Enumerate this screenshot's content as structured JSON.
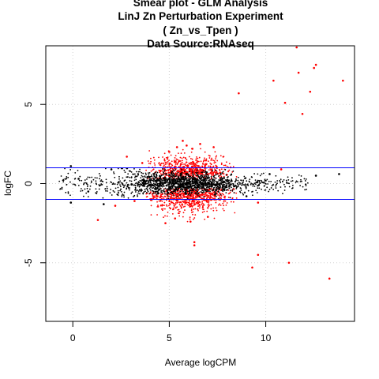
{
  "chart_data": {
    "type": "scatter",
    "title_lines": [
      "Smear plot - GLM Analysis",
      "LinJ Zn Perturbation Experiment",
      "( Zn_vs_Tpen )",
      "Data Source:RNAseq"
    ],
    "xlabel": "Average logCPM",
    "ylabel": "logFC",
    "xlim": [
      -1.4,
      14.6
    ],
    "ylim": [
      -8.7,
      8.7
    ],
    "xticks": [
      0,
      5,
      10
    ],
    "yticks": [
      -5,
      0,
      5
    ],
    "grid": true,
    "threshold_lines": [
      1,
      -1
    ],
    "colors": {
      "significant": "#ff0000",
      "nonsignificant": "#000000",
      "threshold": "#0000ff",
      "grid": "#d3d3d3"
    },
    "series": [
      {
        "name": "",
        "color": "#ff0000",
        "points": [
          [
            11.6,
            8.6
          ],
          [
            12.6,
            7.5
          ],
          [
            12.5,
            7.3
          ],
          [
            14.0,
            6.5
          ],
          [
            10.4,
            6.5
          ],
          [
            11.7,
            7.0
          ],
          [
            12.3,
            5.8
          ],
          [
            8.6,
            5.7
          ],
          [
            11.0,
            5.1
          ],
          [
            11.9,
            4.4
          ],
          [
            1.3,
            -2.3
          ],
          [
            6.3,
            -3.7
          ],
          [
            6.3,
            -3.9
          ],
          [
            9.6,
            -4.5
          ],
          [
            11.2,
            -5.0
          ],
          [
            9.3,
            -5.3
          ],
          [
            13.3,
            -6.0
          ],
          [
            5.4,
            2.3
          ],
          [
            5.9,
            2.4
          ],
          [
            6.6,
            2.5
          ],
          [
            7.3,
            2.3
          ],
          [
            5.0,
            2.0
          ],
          [
            5.7,
            2.7
          ],
          [
            6.2,
            2.2
          ],
          [
            2.8,
            1.7
          ],
          [
            3.6,
            1.3
          ],
          [
            4.8,
            -2.5
          ],
          [
            6.1,
            -2.4
          ],
          [
            7.0,
            -2.1
          ],
          [
            5.3,
            -2.2
          ],
          [
            2.2,
            -1.4
          ],
          [
            3.2,
            -1.1
          ],
          [
            10.8,
            0.9
          ],
          [
            9.6,
            -1.2
          ]
        ]
      },
      {
        "name": "",
        "color": "#000000",
        "points": [
          [
            -0.1,
            1.1
          ],
          [
            -0.1,
            -1.2
          ],
          [
            1.6,
            -1.3
          ],
          [
            12.6,
            0.5
          ],
          [
            13.8,
            0.6
          ],
          [
            0.3,
            0.3
          ],
          [
            0.8,
            -0.5
          ],
          [
            2.0,
            0.9
          ],
          [
            9.0,
            -0.8
          ],
          [
            10.2,
            0.6
          ]
        ]
      }
    ],
    "dense_bands": [
      {
        "color": "#ff0000",
        "count": 1400,
        "x_range": [
          3.8,
          8.5
        ],
        "x_peak": 6.0,
        "y_spread_upper": 2.2,
        "y_spread_lower": 2.4
      },
      {
        "color": "#000000",
        "count": 1700,
        "x_range": [
          -0.7,
          12.2
        ],
        "x_peak": 5.8,
        "y_spread_upper": 0.95,
        "y_spread_lower": 0.95
      }
    ]
  }
}
